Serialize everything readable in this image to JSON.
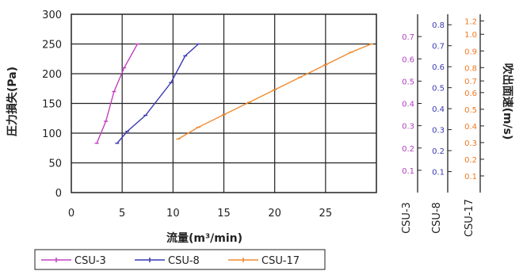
{
  "chart_data": {
    "type": "line",
    "xlabel": "流量(m³/min)",
    "ylabel": "圧力損失(Pa)",
    "right_ylabel": "吹出面速(m/s)",
    "xlim": [
      0,
      30
    ],
    "ylim": [
      0,
      300
    ],
    "x_ticks": [
      "0",
      "5",
      "10",
      "15",
      "20",
      "25"
    ],
    "y_ticks": [
      "0",
      "50",
      "100",
      "150",
      "200",
      "250",
      "300"
    ],
    "grid": true,
    "legend_position": "bottom",
    "series": [
      {
        "name": "CSU-3",
        "color": "#c040c0",
        "x": [
          2.5,
          3.4,
          4.2,
          5.2,
          6.5
        ],
        "y": [
          83,
          120,
          170,
          210,
          250
        ]
      },
      {
        "name": "CSU-8",
        "color": "#3a3ab4",
        "x": [
          4.5,
          5.5,
          7.3,
          9.8,
          11.2,
          12.5
        ],
        "y": [
          83,
          103,
          130,
          185,
          230,
          250
        ]
      },
      {
        "name": "CSU-17",
        "color": "#f08a30",
        "x": [
          10.5,
          12.5,
          15,
          17.5,
          20,
          22.5,
          25,
          27.5,
          29.5
        ],
        "y": [
          90,
          110,
          131,
          152,
          173,
          194,
          215,
          236,
          250
        ]
      }
    ],
    "secondary_axes": [
      {
        "label": "CSU-3",
        "color": "#b040c0",
        "ticks": [
          "0.1",
          "0.2",
          "0.3",
          "0.4",
          "0.5",
          "0.6",
          "0.7"
        ],
        "tick_y": [
          0.1,
          0.2,
          0.3,
          0.4,
          0.5,
          0.6,
          0.7
        ],
        "scale_max": 0.8
      },
      {
        "label": "CSU-8",
        "color": "#3a3ab4",
        "ticks": [
          "0.1",
          "0.2",
          "0.3",
          "0.4",
          "0.5",
          "0.6",
          "0.7",
          "0.8"
        ],
        "tick_y": [
          0.1,
          0.2,
          0.3,
          0.4,
          0.5,
          0.6,
          0.7,
          0.8
        ],
        "scale_max": 0.85
      },
      {
        "label": "CSU-17",
        "color": "#f07820",
        "ticks": [
          "0.1",
          "0.2",
          "0.3",
          "0.4",
          "0.5",
          "0.6",
          "0.7",
          "0.8",
          "0.9",
          "1.0",
          "1.2"
        ],
        "tick_y": [
          0.1,
          0.2,
          0.3,
          0.4,
          0.5,
          0.6,
          0.67,
          0.75,
          0.85,
          0.95,
          1.03
        ],
        "scale_max": 1.07
      }
    ]
  }
}
